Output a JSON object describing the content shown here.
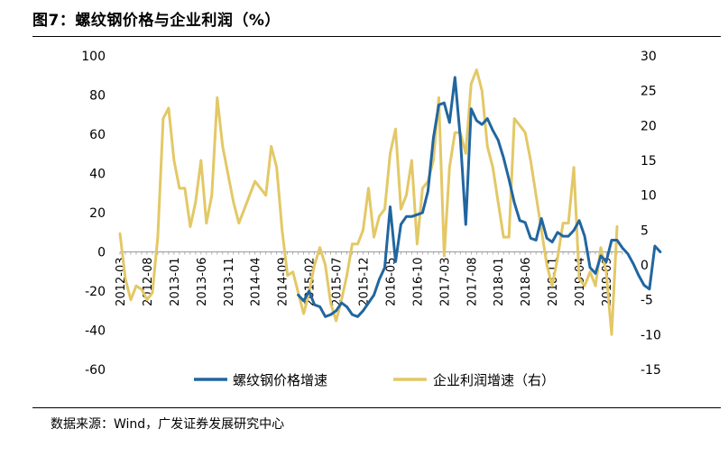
{
  "title": "图7：螺纹钢价格与企业利润（%）",
  "source": "数据来源：Wind，广发证券发展研究中心",
  "chart_data": {
    "type": "line",
    "x_tick_labels": [
      "2012-03",
      "2012-08",
      "2013-01",
      "2013-06",
      "2013-11",
      "2014-04",
      "2014-09",
      "2015-02",
      "2015-07",
      "2015-12",
      "2016-05",
      "2016-10",
      "2017-03",
      "2017-08",
      "2018-01",
      "2018-06",
      "2018-11",
      "2019-04",
      "2019-09"
    ],
    "x_start": "2012-03",
    "x_end": "2019-12",
    "left_axis": {
      "ylim": [
        -60,
        100
      ],
      "ticks": [
        -60,
        -40,
        -20,
        0,
        20,
        40,
        60,
        80,
        100
      ]
    },
    "right_axis": {
      "ylim": [
        -15,
        30
      ],
      "ticks": [
        -15,
        -10,
        -5,
        0,
        5,
        10,
        15,
        20,
        25,
        30
      ]
    },
    "colors": {
      "steel": "#2166A0",
      "profit": "#E3C866"
    },
    "series": [
      {
        "name": "螺纹钢价格增速",
        "axis": "left",
        "start": "2014-12",
        "values": [
          -22,
          -25,
          -20,
          -27,
          -28,
          -33,
          -32,
          -30,
          -26,
          -28,
          -32,
          -33,
          -30,
          -26,
          -22,
          -14,
          -8,
          23,
          -5,
          14,
          18,
          18,
          19,
          20,
          31,
          58,
          75,
          76,
          66,
          89,
          58,
          14,
          73,
          67,
          65,
          68,
          62,
          57,
          48,
          37,
          25,
          16,
          15,
          7,
          6,
          17,
          7,
          5,
          10,
          8,
          8,
          11,
          16,
          8,
          -8,
          -11,
          -2,
          -5,
          6,
          6,
          2,
          -1,
          -6,
          -12,
          -17,
          -19,
          3,
          0
        ]
      },
      {
        "name": "企业利润增速（右）",
        "axis": "right",
        "start": "2012-03",
        "values": [
          4.5,
          -2,
          -5,
          -3,
          -3.5,
          -5,
          -4,
          4,
          21,
          22.5,
          15,
          11,
          11,
          5.5,
          9,
          15,
          6,
          10,
          24,
          17,
          13,
          9,
          6,
          8,
          10,
          12,
          11,
          10,
          17,
          14,
          5,
          -1.5,
          -1,
          -4,
          -7,
          -4,
          0,
          2.5,
          0,
          -5.5,
          -8,
          -5,
          -1.5,
          3,
          3,
          5,
          11,
          4,
          7,
          8,
          16,
          19.5,
          8,
          10,
          15,
          3,
          11,
          12,
          15,
          24,
          1.3,
          14,
          19,
          19,
          16,
          26,
          28,
          25,
          17,
          14,
          9,
          4,
          4,
          21,
          20,
          19,
          15,
          10,
          5,
          0,
          -3,
          1,
          6,
          6,
          14,
          -2,
          -3,
          -1,
          -3,
          2.5,
          -1,
          -10,
          5.5
        ]
      }
    ]
  }
}
